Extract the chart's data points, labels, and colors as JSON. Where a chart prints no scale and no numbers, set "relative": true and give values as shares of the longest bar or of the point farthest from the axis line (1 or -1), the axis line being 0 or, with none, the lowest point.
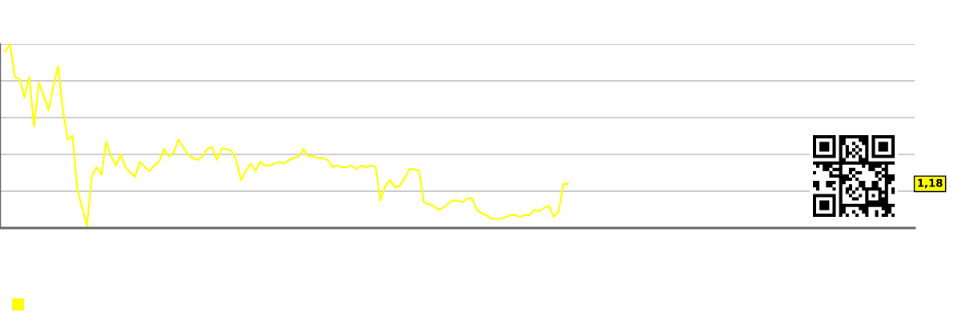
{
  "chart_data": {
    "type": "line",
    "relative": true,
    "categories": [
      null,
      null,
      null,
      null,
      null,
      null,
      null,
      null,
      null,
      null,
      null,
      null,
      null,
      null,
      null,
      null,
      null,
      null,
      null,
      null,
      null,
      null,
      null,
      null,
      null,
      null,
      null,
      null,
      null,
      null,
      null,
      null,
      null,
      null,
      null,
      null,
      null,
      null,
      null,
      null,
      null,
      null,
      null,
      null,
      null,
      null,
      null,
      null,
      null,
      null,
      null,
      null,
      null,
      null,
      null,
      null,
      null,
      null,
      null,
      null,
      null,
      null,
      null,
      null,
      null,
      null,
      null,
      null,
      null,
      null,
      null,
      null,
      null,
      null,
      null,
      null,
      null,
      null,
      null,
      null,
      null,
      null,
      null,
      null,
      null,
      null,
      null,
      null,
      null,
      null,
      null,
      null,
      null,
      null,
      null,
      null,
      null,
      null,
      null,
      null,
      null,
      null,
      null,
      null,
      null,
      null,
      null,
      null,
      null,
      null,
      null,
      null,
      null,
      null,
      null,
      null,
      null,
      null,
      null,
      null,
      null,
      null,
      null,
      null,
      null,
      null,
      null,
      null,
      null,
      null,
      null,
      null,
      null,
      null,
      null,
      null,
      null,
      null,
      null,
      null,
      null,
      null,
      null,
      null,
      null,
      null,
      null,
      null,
      null,
      null,
      null,
      null,
      null,
      null,
      null,
      null,
      null,
      null,
      null,
      null,
      null,
      null,
      null,
      null,
      null,
      null,
      null,
      null,
      null,
      null,
      null,
      null,
      null,
      null,
      null,
      null,
      null,
      null,
      null,
      null,
      null,
      null,
      null,
      null,
      null,
      null,
      null,
      null,
      null
    ],
    "series": [
      {
        "color": "#ffff00",
        "values": [
          0.96,
          1.0,
          0.82,
          0.81,
          0.71,
          0.82,
          0.55,
          0.79,
          0.72,
          0.64,
          0.77,
          0.88,
          0.64,
          0.48,
          0.5,
          0.21,
          0.11,
          0.01,
          0.28,
          0.33,
          0.29,
          0.47,
          0.39,
          0.34,
          0.4,
          0.33,
          0.3,
          0.28,
          0.36,
          0.33,
          0.31,
          0.34,
          0.36,
          0.43,
          0.39,
          0.41,
          0.48,
          0.44,
          0.4,
          0.38,
          0.37,
          0.39,
          0.43,
          0.44,
          0.37,
          0.43,
          0.43,
          0.42,
          0.37,
          0.26,
          0.31,
          0.35,
          0.31,
          0.36,
          0.34,
          0.34,
          0.35,
          0.36,
          0.35,
          0.37,
          0.38,
          0.39,
          0.43,
          0.39,
          0.39,
          0.38,
          0.38,
          0.37,
          0.33,
          0.34,
          0.33,
          0.33,
          0.34,
          0.32,
          0.34,
          0.33,
          0.34,
          0.33,
          0.15,
          0.23,
          0.26,
          0.22,
          0.23,
          0.27,
          0.32,
          0.32,
          0.31,
          0.14,
          0.13,
          0.12,
          0.1,
          0.11,
          0.13,
          0.15,
          0.15,
          0.14,
          0.16,
          0.16,
          0.1,
          0.08,
          0.07,
          0.05,
          0.05,
          0.05,
          0.06,
          0.07,
          0.07,
          0.06,
          0.07,
          0.07,
          0.1,
          0.09,
          0.11,
          0.12,
          0.06,
          0.09,
          0.24,
          0.24,
          null,
          null,
          null,
          null,
          null,
          null,
          null,
          null,
          null,
          null,
          null,
          null,
          null,
          null,
          null,
          null,
          null,
          null,
          null,
          null,
          null,
          null,
          null,
          null,
          null,
          null,
          null,
          null,
          null,
          null,
          null,
          null,
          null,
          null,
          null,
          null,
          null,
          null,
          null,
          null,
          null,
          null,
          null,
          null,
          null,
          null,
          null,
          null,
          null,
          null,
          null,
          null,
          null,
          null,
          null,
          null,
          null,
          null,
          null,
          null,
          null,
          null,
          null,
          null,
          null,
          null,
          null,
          null,
          null,
          null,
          null
        ]
      }
    ],
    "grid": "y",
    "line_style": "solid",
    "annotations": [
      {
        "text": "1,18",
        "y": 0.24
      }
    ]
  }
}
